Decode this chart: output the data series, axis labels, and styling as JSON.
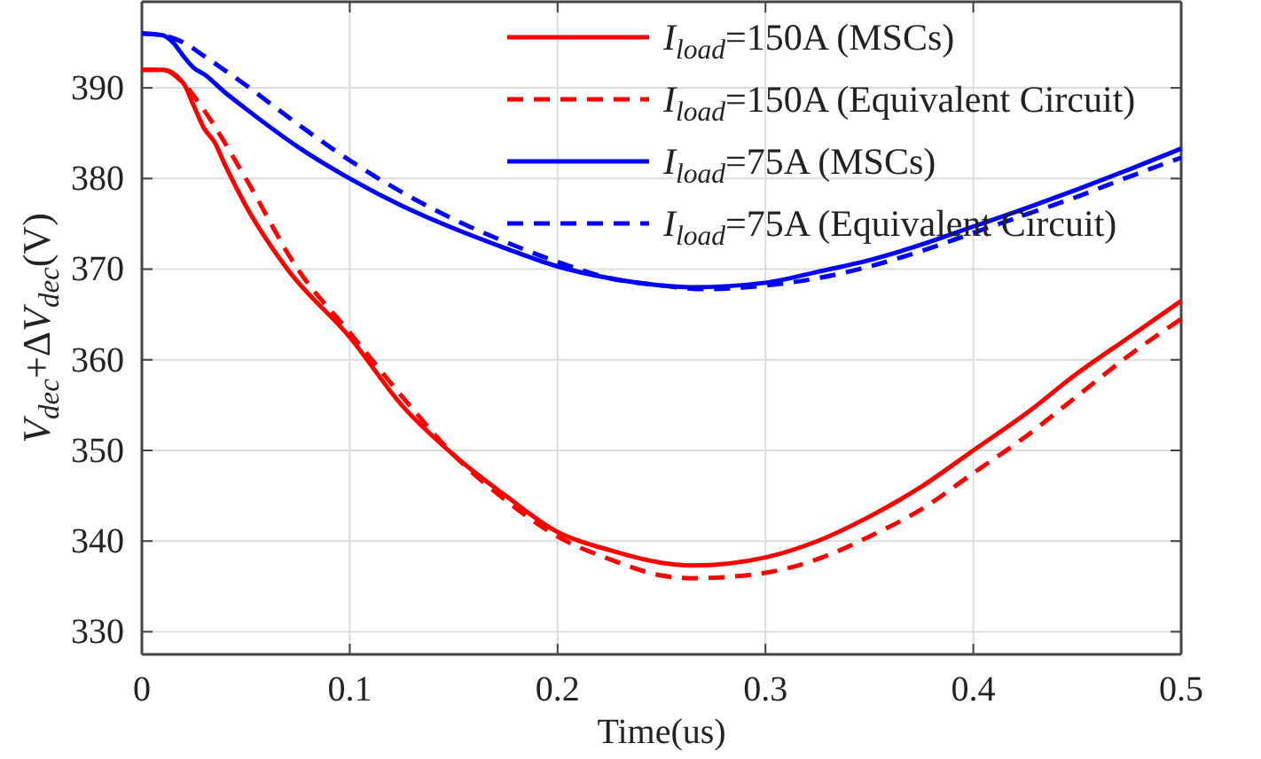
{
  "chart_data": {
    "type": "line",
    "xlabel": "Time(us)",
    "ylabel": "V$_{dec}$+ΔV$_{dec}$(V)",
    "xlim": [
      0,
      0.5
    ],
    "xticks": [
      0,
      0.1,
      0.2,
      0.3,
      0.4,
      0.5
    ],
    "ylim": [
      327.5,
      399.5
    ],
    "yticks": [
      330,
      340,
      350,
      360,
      370,
      380,
      390
    ],
    "grid": true,
    "legend": "top right",
    "marker": "none",
    "series": [
      {
        "name": "I$_{load}$=150A (MSCs)",
        "color": "#ff0000",
        "line_style": "solid",
        "x": [
          0,
          0.01,
          0.02,
          0.025,
          0.03,
          0.035,
          0.04,
          0.05,
          0.07,
          0.1,
          0.125,
          0.15,
          0.175,
          0.2,
          0.225,
          0.25,
          0.265,
          0.3,
          0.325,
          0.35,
          0.375,
          0.4,
          0.425,
          0.45,
          0.475,
          0.5
        ],
        "values": [
          392,
          392,
          390.5,
          388,
          385.5,
          384,
          381.5,
          377,
          370,
          362.5,
          355,
          349.5,
          345,
          341,
          339,
          337.6,
          337.3,
          338.2,
          340,
          342.7,
          346,
          350,
          354,
          358.5,
          362.5,
          366.5
        ]
      },
      {
        "name": "I$_{load}$=150A (Equivalent Circuit)",
        "color": "#ff0000",
        "line_style": "dashed",
        "x": [
          0,
          0.01,
          0.02,
          0.03,
          0.05,
          0.075,
          0.1,
          0.125,
          0.15,
          0.175,
          0.2,
          0.225,
          0.25,
          0.265,
          0.3,
          0.325,
          0.35,
          0.375,
          0.4,
          0.425,
          0.45,
          0.475,
          0.5
        ],
        "values": [
          392,
          392,
          390.5,
          387.5,
          380,
          370,
          363,
          356,
          349.5,
          344.5,
          340.5,
          338,
          336.2,
          335.9,
          336.5,
          338,
          340.5,
          343.5,
          347.5,
          351.5,
          356,
          360.5,
          364.5
        ]
      },
      {
        "name": "I$_{load}$=75A (MSCs)",
        "color": "#0000ff",
        "line_style": "solid",
        "x": [
          0,
          0.01,
          0.015,
          0.02,
          0.025,
          0.03,
          0.04,
          0.05,
          0.075,
          0.1,
          0.125,
          0.15,
          0.175,
          0.2,
          0.225,
          0.25,
          0.265,
          0.3,
          0.325,
          0.35,
          0.375,
          0.4,
          0.425,
          0.45,
          0.475,
          0.5
        ],
        "values": [
          396,
          395.8,
          395,
          393.5,
          392.2,
          391.5,
          389.5,
          387.7,
          383.5,
          380,
          377,
          374.5,
          372.3,
          370.3,
          369,
          368.2,
          368,
          368.5,
          369.7,
          371,
          372.7,
          374.7,
          376.7,
          378.8,
          381,
          383.3
        ]
      },
      {
        "name": "I$_{load}$=75A (Equivalent Circuit)",
        "color": "#0000ff",
        "line_style": "dashed",
        "x": [
          0,
          0.01,
          0.02,
          0.03,
          0.05,
          0.075,
          0.1,
          0.125,
          0.15,
          0.175,
          0.2,
          0.225,
          0.25,
          0.27,
          0.3,
          0.325,
          0.35,
          0.375,
          0.4,
          0.425,
          0.45,
          0.475,
          0.5
        ],
        "values": [
          396,
          395.8,
          395,
          393.5,
          390.3,
          386,
          382,
          378.5,
          375.5,
          373,
          370.8,
          369,
          368.2,
          367.8,
          368.2,
          369,
          370.3,
          372,
          374,
          376,
          378,
          380.2,
          382.3
        ]
      }
    ]
  }
}
